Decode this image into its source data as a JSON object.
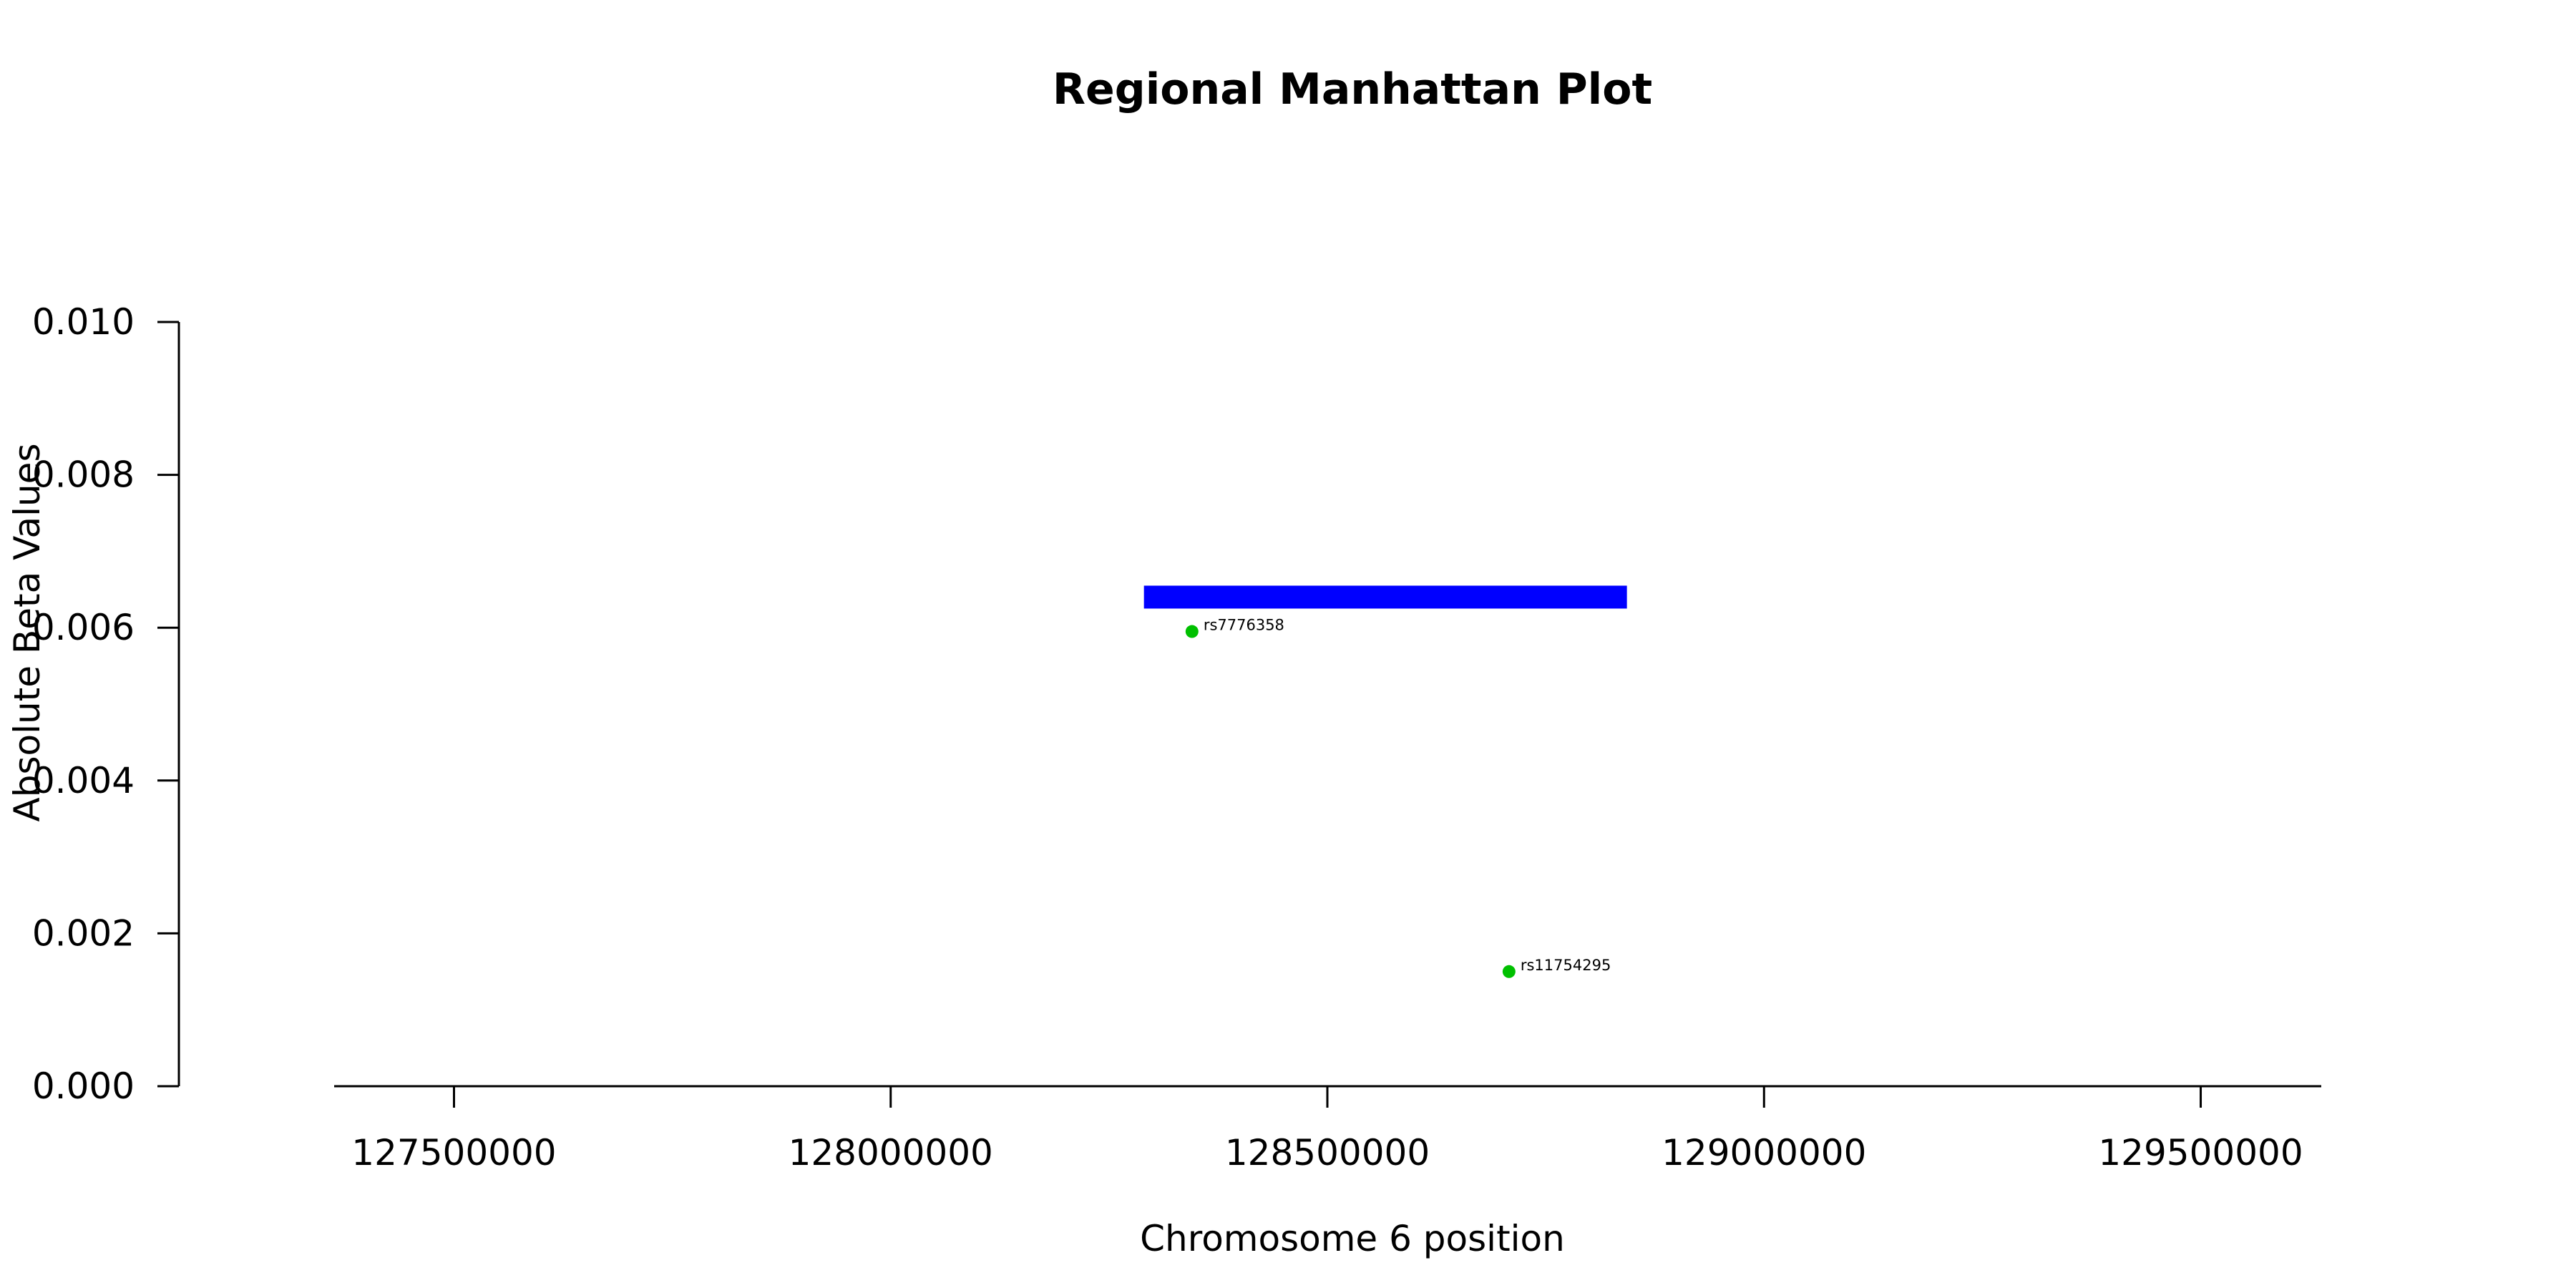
{
  "chart_data": {
    "type": "scatter",
    "title": "Regional Manhattan Plot",
    "xlabel": "Chromosome 6 position",
    "ylabel": "Absolute Beta Values",
    "xlim": [
      127185000,
      129815000
    ],
    "ylim": [
      0,
      0.01
    ],
    "x_ticks": [
      127500000,
      128000000,
      128500000,
      129000000,
      129500000
    ],
    "x_tick_labels": [
      "127500000",
      "128000000",
      "128500000",
      "129000000",
      "129500000"
    ],
    "y_ticks": [
      0,
      0.002,
      0.004,
      0.006,
      0.008,
      0.01
    ],
    "y_tick_labels": [
      "0.000",
      "0.002",
      "0.004",
      "0.006",
      "0.008",
      "0.010"
    ],
    "grid": false,
    "gene_region": {
      "x_start": 128290000,
      "x_end": 128843000,
      "y": 0.0064,
      "color": "#0000ff"
    },
    "points": [
      {
        "label": "rs7776358",
        "x": 128345000,
        "y": 0.00595,
        "color": "#00c000"
      },
      {
        "label": "rs11754295",
        "x": 128708000,
        "y": 0.0015,
        "color": "#00c000"
      }
    ]
  }
}
